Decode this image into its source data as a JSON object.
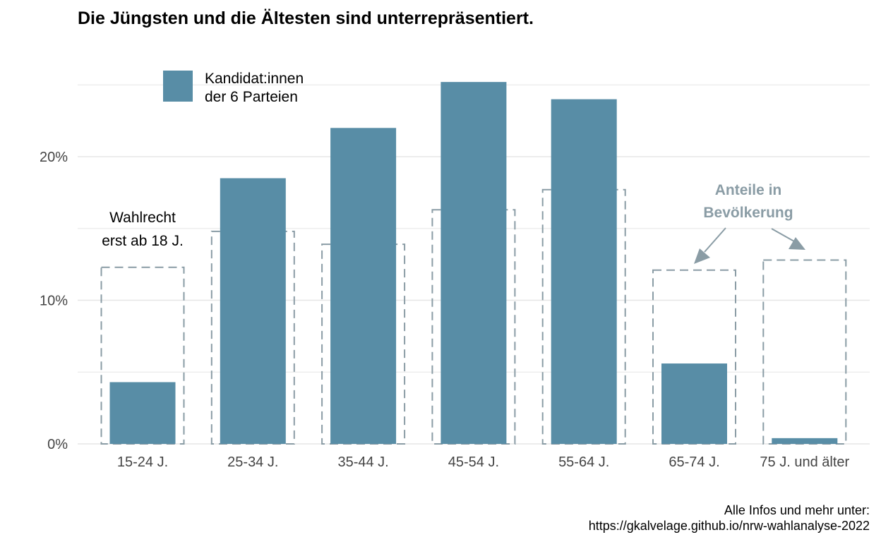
{
  "title": "Die Jüngsten und die Ältesten sind unterrepräsentiert.",
  "caption": {
    "line1": "Alle Infos und mehr unter:",
    "line2": "https://gkalvelage.github.io/nrw-wahlanalyse-2022"
  },
  "colors": {
    "candidates": "#588da6",
    "population": "#8a9ca5",
    "grid": "#e6e6e6"
  },
  "chart_data": {
    "type": "bar",
    "categories": [
      "15-24 J.",
      "25-34 J.",
      "35-44 J.",
      "45-54 J.",
      "55-64 J.",
      "65-74 J.",
      "75 J. und älter"
    ],
    "series": [
      {
        "name": "Kandidat:innen der 6 Parteien",
        "legend_lines": [
          "Kandidat:innen",
          "der 6 Parteien"
        ],
        "style": "filled",
        "values": [
          4.3,
          18.5,
          22.0,
          25.2,
          24.0,
          5.6,
          0.4
        ]
      },
      {
        "name": "Anteile in Bevölkerung",
        "style": "dashed-outline",
        "values": [
          12.3,
          14.8,
          13.9,
          16.3,
          17.7,
          12.1,
          12.8
        ]
      }
    ],
    "y_ticks": [
      {
        "value": 0,
        "label": "0%"
      },
      {
        "value": 10,
        "label": "10%"
      },
      {
        "value": 20,
        "label": "20%"
      }
    ],
    "ylim": [
      0,
      25.5
    ],
    "grid": true,
    "legend_position": "top-left",
    "annotations": {
      "voting_note": [
        "Wahlrecht",
        "erst ab 18 J."
      ],
      "population_label": [
        "Anteile in",
        "Bevölkerung"
      ]
    }
  }
}
